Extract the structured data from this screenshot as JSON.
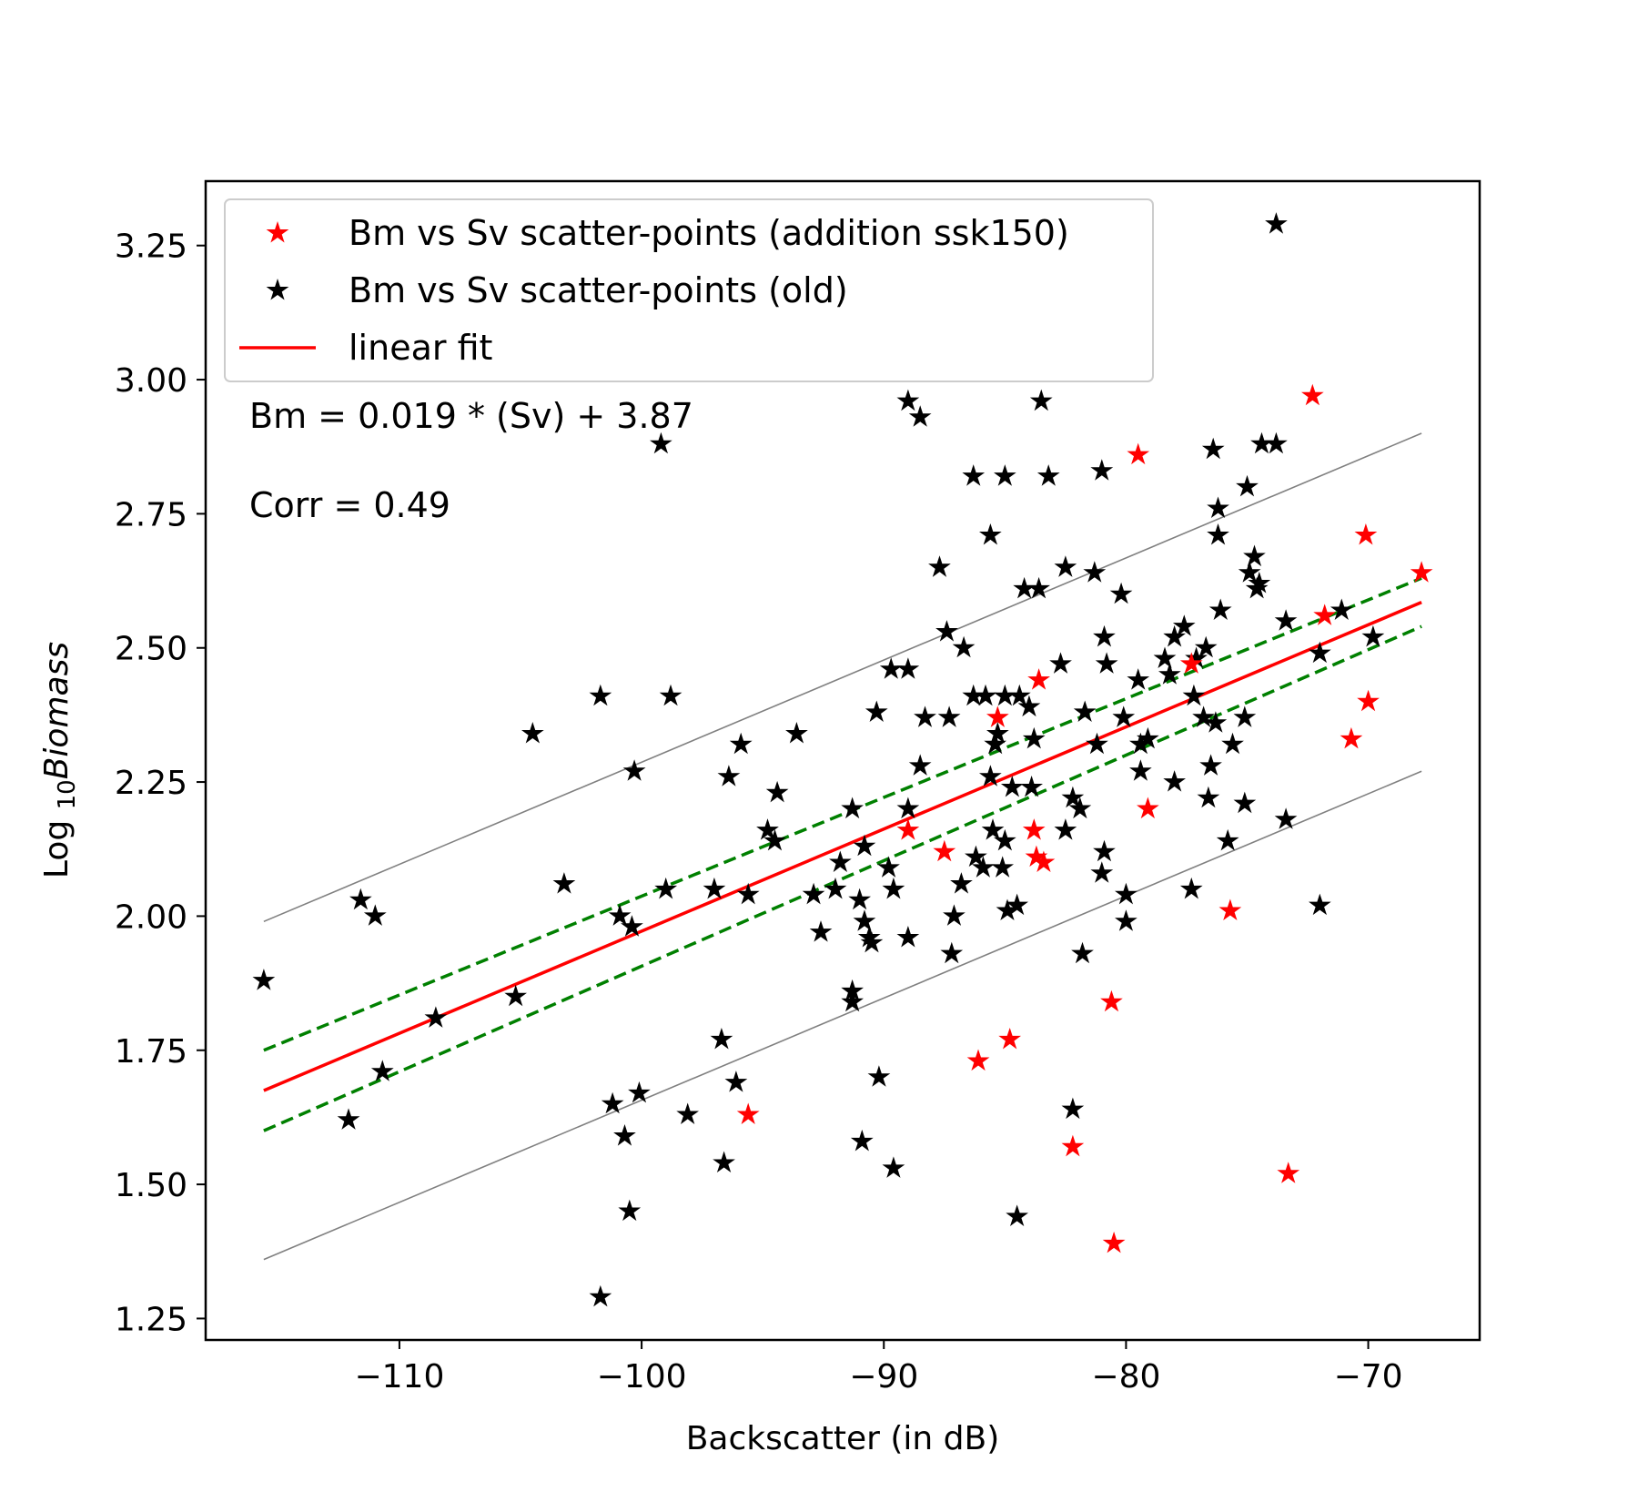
{
  "chart_data": {
    "type": "scatter",
    "title": "",
    "xlabel": "Backscatter (in dB)",
    "ylabel_prefix": "Log ",
    "ylabel_sub": "10",
    "ylabel_italic": "Biomass",
    "xlim": [
      -118,
      -65.4
    ],
    "ylim": [
      1.21,
      3.37
    ],
    "xticks": [
      -110,
      -100,
      -90,
      -80,
      -70
    ],
    "xtick_labels": [
      "−110",
      "−100",
      "−90",
      "−80",
      "−70"
    ],
    "yticks": [
      1.25,
      1.5,
      1.75,
      2.0,
      2.25,
      2.5,
      2.75,
      3.0,
      3.25
    ],
    "ytick_labels": [
      "1.25",
      "1.50",
      "1.75",
      "2.00",
      "2.25",
      "2.50",
      "2.75",
      "3.00",
      "3.25"
    ],
    "grid": false,
    "legend_position": "top-left",
    "legend": [
      {
        "label": "Bm vs Sv scatter-points (addition ssk150)",
        "marker": "star",
        "color": "#ff0000"
      },
      {
        "label": "Bm vs Sv scatter-points (old)",
        "marker": "star",
        "color": "#000000"
      },
      {
        "label": "linear fit",
        "marker": "line",
        "color": "#ff0000"
      }
    ],
    "annotations": [
      "Bm = 0.019 * (Sv) + 3.87",
      "Corr = 0.49"
    ],
    "lines": [
      {
        "name": "linear fit",
        "color": "#ff0000",
        "style": "solid",
        "x": [
          -115.6,
          -67.8
        ],
        "y": [
          1.675,
          2.585
        ]
      },
      {
        "name": "",
        "color": "#008000",
        "style": "dashed",
        "x": [
          -115.6,
          -67.8
        ],
        "y": [
          1.75,
          2.63
        ]
      },
      {
        "name": "",
        "color": "#008000",
        "style": "dashed",
        "x": [
          -115.6,
          -67.8
        ],
        "y": [
          1.6,
          2.54
        ]
      },
      {
        "name": "",
        "color": "#808080",
        "style": "solid",
        "x": [
          -115.6,
          -67.8
        ],
        "y": [
          1.99,
          2.9
        ]
      },
      {
        "name": "",
        "color": "#808080",
        "style": "solid",
        "x": [
          -115.6,
          -67.8
        ],
        "y": [
          1.36,
          2.27
        ]
      }
    ],
    "series": [
      {
        "name": "Bm vs Sv scatter-points (addition ssk150)",
        "color": "#ff0000",
        "points": [
          [
            -79.5,
            2.86
          ],
          [
            -72.3,
            2.97
          ],
          [
            -70.1,
            2.71
          ],
          [
            -67.8,
            2.64
          ],
          [
            -71.8,
            2.56
          ],
          [
            -70.0,
            2.4
          ],
          [
            -70.7,
            2.33
          ],
          [
            -77.3,
            2.47
          ],
          [
            -83.6,
            2.44
          ],
          [
            -85.3,
            2.37
          ],
          [
            -89.0,
            2.16
          ],
          [
            -87.5,
            2.12
          ],
          [
            -83.8,
            2.16
          ],
          [
            -83.7,
            2.11
          ],
          [
            -83.4,
            2.1
          ],
          [
            -79.1,
            2.2
          ],
          [
            -75.7,
            2.01
          ],
          [
            -80.6,
            1.84
          ],
          [
            -84.8,
            1.77
          ],
          [
            -86.1,
            1.73
          ],
          [
            -95.6,
            1.63
          ],
          [
            -82.2,
            1.57
          ],
          [
            -80.5,
            1.39
          ],
          [
            -73.3,
            1.52
          ]
        ]
      },
      {
        "name": "Bm vs Sv scatter-points (old)",
        "color": "#000000",
        "points": [
          [
            -73.8,
            3.29
          ],
          [
            -83.5,
            2.96
          ],
          [
            -89.0,
            2.96
          ],
          [
            -88.5,
            2.93
          ],
          [
            -99.2,
            2.88
          ],
          [
            -81.0,
            2.83
          ],
          [
            -76.4,
            2.87
          ],
          [
            -74.4,
            2.88
          ],
          [
            -73.8,
            2.88
          ],
          [
            -86.3,
            2.82
          ],
          [
            -85.0,
            2.82
          ],
          [
            -83.2,
            2.82
          ],
          [
            -75.0,
            2.8
          ],
          [
            -76.2,
            2.76
          ],
          [
            -76.2,
            2.71
          ],
          [
            -85.6,
            2.71
          ],
          [
            -74.7,
            2.67
          ],
          [
            -74.9,
            2.64
          ],
          [
            -74.5,
            2.62
          ],
          [
            -74.6,
            2.61
          ],
          [
            -87.7,
            2.65
          ],
          [
            -82.5,
            2.65
          ],
          [
            -81.3,
            2.64
          ],
          [
            -84.2,
            2.61
          ],
          [
            -83.6,
            2.61
          ],
          [
            -80.2,
            2.6
          ],
          [
            -76.1,
            2.57
          ],
          [
            -71.1,
            2.57
          ],
          [
            -73.4,
            2.55
          ],
          [
            -77.6,
            2.54
          ],
          [
            -78.0,
            2.52
          ],
          [
            -87.4,
            2.53
          ],
          [
            -80.9,
            2.52
          ],
          [
            -86.7,
            2.5
          ],
          [
            -76.7,
            2.5
          ],
          [
            -77.1,
            2.48
          ],
          [
            -72.0,
            2.49
          ],
          [
            -69.8,
            2.52
          ],
          [
            -78.4,
            2.48
          ],
          [
            -82.7,
            2.47
          ],
          [
            -80.8,
            2.47
          ],
          [
            -89.7,
            2.46
          ],
          [
            -89.0,
            2.46
          ],
          [
            -78.2,
            2.45
          ],
          [
            -79.5,
            2.44
          ],
          [
            -98.8,
            2.41
          ],
          [
            -101.7,
            2.41
          ],
          [
            -86.3,
            2.41
          ],
          [
            -85.8,
            2.41
          ],
          [
            -85.0,
            2.41
          ],
          [
            -84.4,
            2.41
          ],
          [
            -84.0,
            2.39
          ],
          [
            -77.2,
            2.41
          ],
          [
            -93.6,
            2.34
          ],
          [
            -104.5,
            2.34
          ],
          [
            -95.9,
            2.32
          ],
          [
            -90.3,
            2.38
          ],
          [
            -88.3,
            2.37
          ],
          [
            -87.3,
            2.37
          ],
          [
            -85.3,
            2.34
          ],
          [
            -81.7,
            2.38
          ],
          [
            -80.1,
            2.37
          ],
          [
            -76.8,
            2.37
          ],
          [
            -76.3,
            2.36
          ],
          [
            -75.1,
            2.37
          ],
          [
            -79.1,
            2.33
          ],
          [
            -79.4,
            2.32
          ],
          [
            -75.6,
            2.32
          ],
          [
            -85.4,
            2.32
          ],
          [
            -83.8,
            2.33
          ],
          [
            -81.2,
            2.32
          ],
          [
            -100.3,
            2.27
          ],
          [
            -96.4,
            2.26
          ],
          [
            -88.5,
            2.28
          ],
          [
            -76.5,
            2.28
          ],
          [
            -79.4,
            2.27
          ],
          [
            -85.6,
            2.26
          ],
          [
            -84.7,
            2.24
          ],
          [
            -83.9,
            2.24
          ],
          [
            -82.2,
            2.22
          ],
          [
            -94.4,
            2.23
          ],
          [
            -78.0,
            2.25
          ],
          [
            -76.6,
            2.22
          ],
          [
            -75.1,
            2.21
          ],
          [
            -73.4,
            2.18
          ],
          [
            -81.9,
            2.2
          ],
          [
            -91.3,
            2.2
          ],
          [
            -94.8,
            2.16
          ],
          [
            -94.5,
            2.14
          ],
          [
            -89.0,
            2.2
          ],
          [
            -82.5,
            2.16
          ],
          [
            -85.0,
            2.14
          ],
          [
            -85.5,
            2.16
          ],
          [
            -91.8,
            2.1
          ],
          [
            -90.8,
            2.13
          ],
          [
            -86.2,
            2.11
          ],
          [
            -80.9,
            2.12
          ],
          [
            -75.8,
            2.14
          ],
          [
            -99.0,
            2.05
          ],
          [
            -103.2,
            2.06
          ],
          [
            -97.0,
            2.05
          ],
          [
            -95.6,
            2.04
          ],
          [
            -92.9,
            2.04
          ],
          [
            -92.0,
            2.05
          ],
          [
            -89.8,
            2.09
          ],
          [
            -89.6,
            2.05
          ],
          [
            -91.0,
            2.03
          ],
          [
            -86.8,
            2.06
          ],
          [
            -85.9,
            2.09
          ],
          [
            -85.1,
            2.09
          ],
          [
            -81.0,
            2.08
          ],
          [
            -80.0,
            2.04
          ],
          [
            -77.3,
            2.05
          ],
          [
            -72.0,
            2.02
          ],
          [
            -111.6,
            2.03
          ],
          [
            -111.0,
            2.0
          ],
          [
            -100.9,
            2.0
          ],
          [
            -100.4,
            1.98
          ],
          [
            -92.6,
            1.97
          ],
          [
            -90.8,
            1.99
          ],
          [
            -90.6,
            1.96
          ],
          [
            -90.5,
            1.95
          ],
          [
            -89.0,
            1.96
          ],
          [
            -87.1,
            2.0
          ],
          [
            -87.2,
            1.93
          ],
          [
            -84.9,
            2.01
          ],
          [
            -84.5,
            2.02
          ],
          [
            -81.8,
            1.93
          ],
          [
            -80.0,
            1.99
          ],
          [
            -115.6,
            1.88
          ],
          [
            -105.2,
            1.85
          ],
          [
            -108.5,
            1.81
          ],
          [
            -91.3,
            1.86
          ],
          [
            -91.3,
            1.84
          ],
          [
            -110.7,
            1.71
          ],
          [
            -96.7,
            1.77
          ],
          [
            -96.1,
            1.69
          ],
          [
            -90.2,
            1.7
          ],
          [
            -100.1,
            1.67
          ],
          [
            -101.2,
            1.65
          ],
          [
            -98.1,
            1.63
          ],
          [
            -112.1,
            1.62
          ],
          [
            -82.2,
            1.64
          ],
          [
            -100.7,
            1.59
          ],
          [
            -96.6,
            1.54
          ],
          [
            -90.9,
            1.58
          ],
          [
            -89.6,
            1.53
          ],
          [
            -100.5,
            1.45
          ],
          [
            -84.5,
            1.44
          ],
          [
            -101.7,
            1.29
          ]
        ]
      }
    ]
  }
}
